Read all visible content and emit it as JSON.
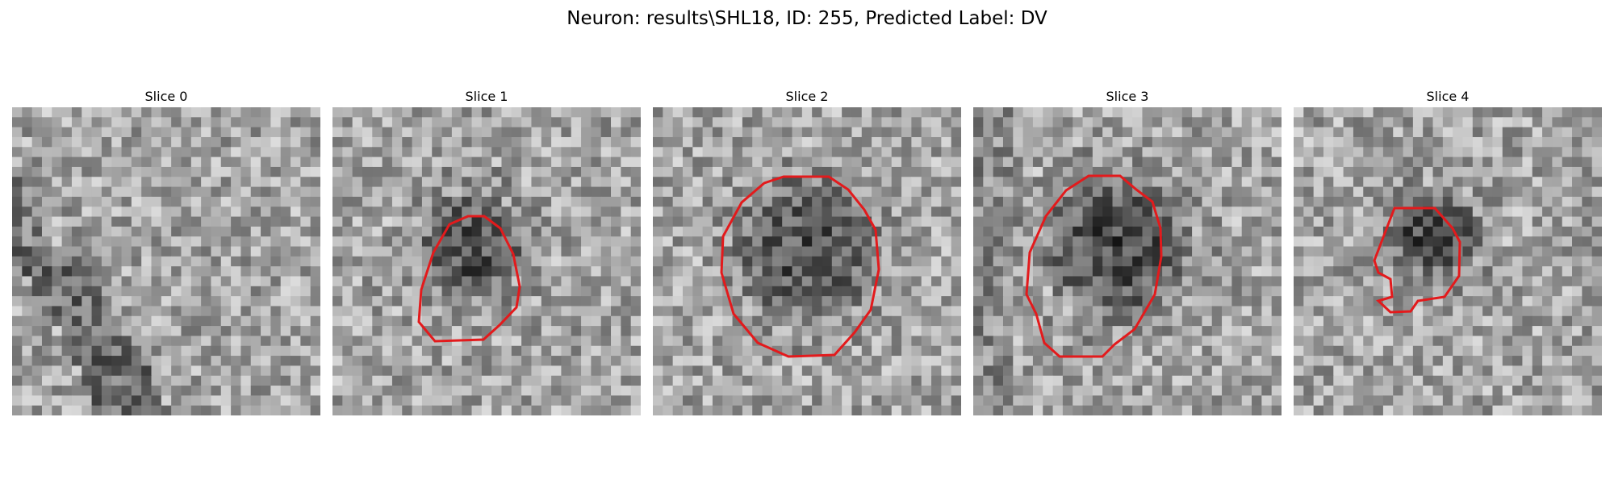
{
  "figure": {
    "suptitle": "Neuron: results\\SHL18, ID: 255, Predicted Label: DV",
    "contour_color": "#e31a1c",
    "colormap": "gray",
    "slices": [
      {
        "title": "Slice 0",
        "has_contour": false
      },
      {
        "title": "Slice 1",
        "has_contour": true
      },
      {
        "title": "Slice 2",
        "has_contour": true
      },
      {
        "title": "Slice 3",
        "has_contour": true
      },
      {
        "title": "Slice 4",
        "has_contour": true
      }
    ]
  }
}
